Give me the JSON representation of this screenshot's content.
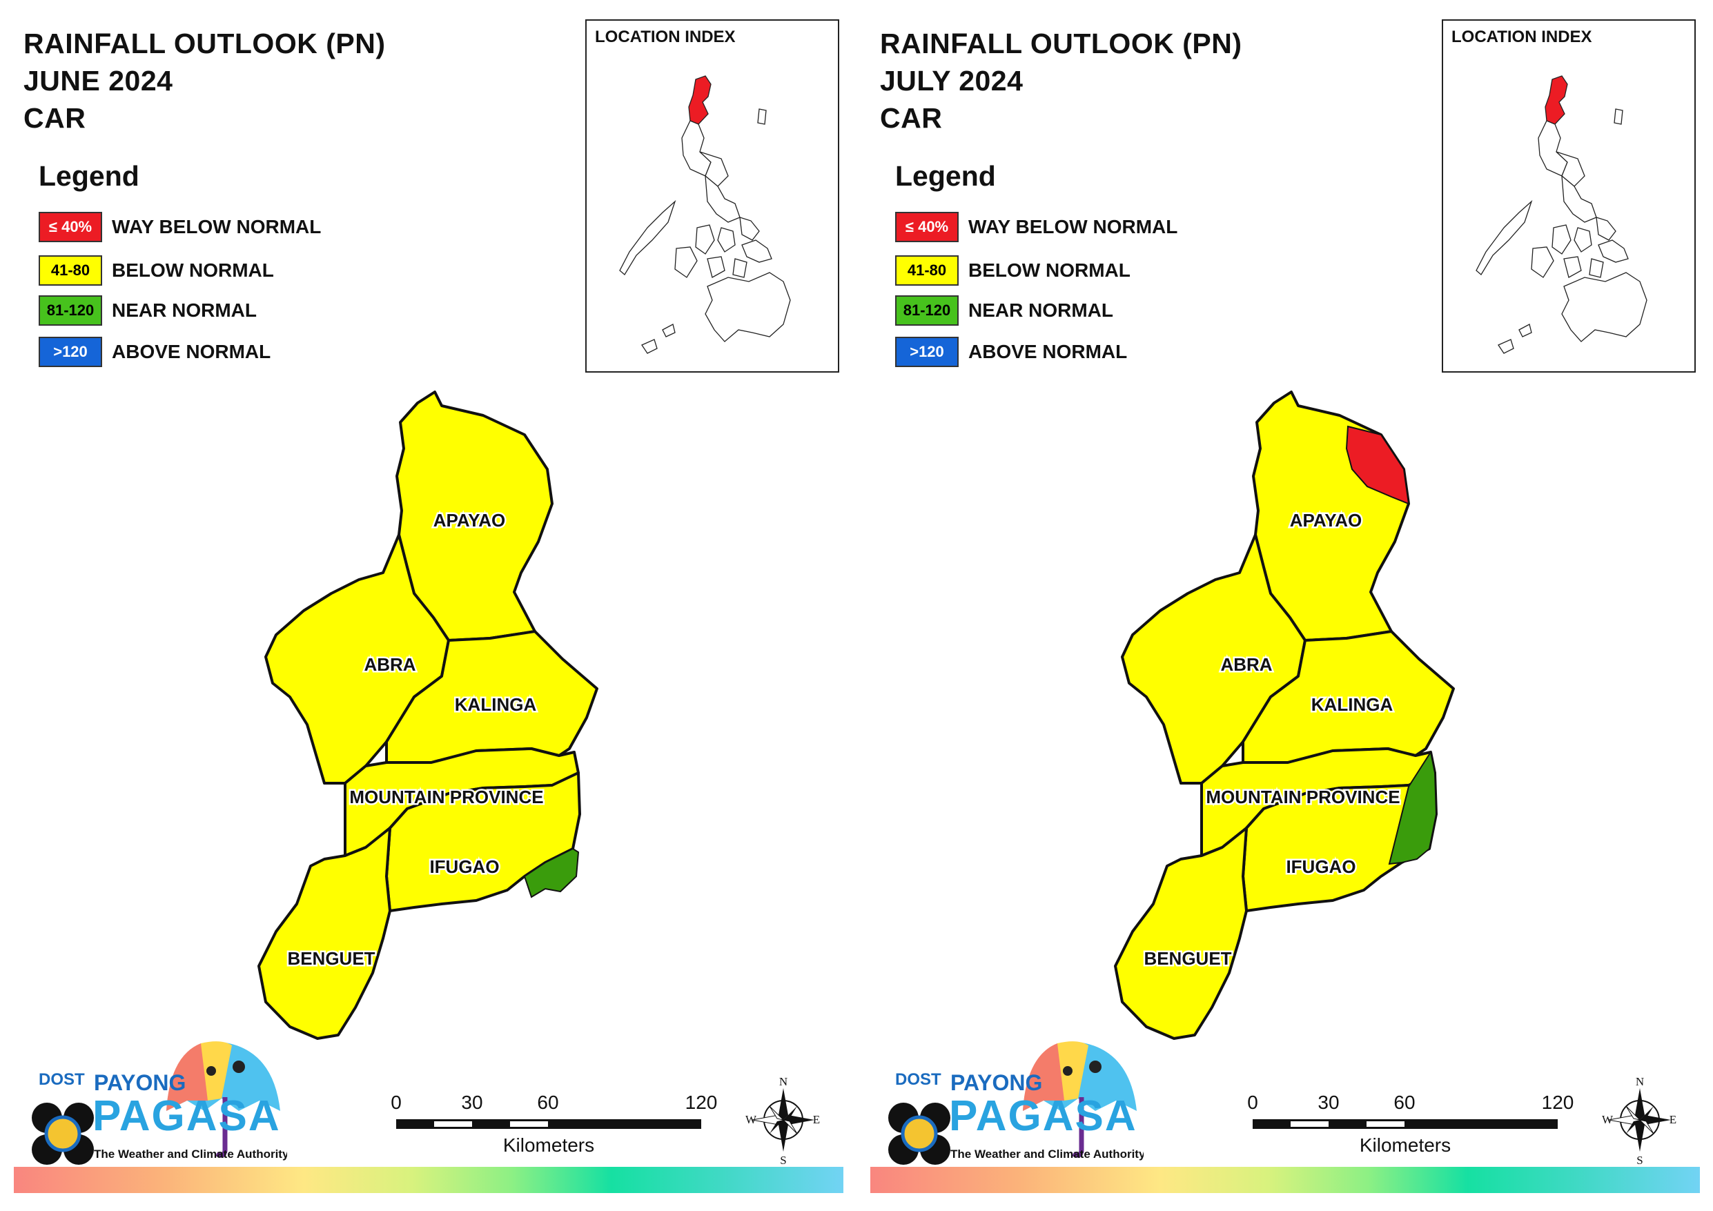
{
  "panels": [
    {
      "title_lines": [
        "RAINFALL OUTLOOK (PN)",
        "JUNE 2024",
        "CAR"
      ],
      "legend_title": "Legend",
      "legend": [
        {
          "range": "≤ 40%",
          "label": "WAY BELOW NORMAL",
          "color": "#ec1c24",
          "text_color": "#ffffff"
        },
        {
          "range": "41-80",
          "label": "BELOW NORMAL",
          "color": "#ffff00",
          "text_color": "#000000"
        },
        {
          "range": "81-120",
          "label": "NEAR NORMAL",
          "color": "#47c21d",
          "text_color": "#000000"
        },
        {
          "range": ">120",
          "label": "ABOVE NORMAL",
          "color": "#1565d8",
          "text_color": "#ffffff"
        }
      ],
      "inset_title": "LOCATION INDEX",
      "provinces": [
        "APAYAO",
        "ABRA",
        "KALINGA",
        "MOUNTAIN PROVINCE",
        "IFUGAO",
        "BENGUET"
      ],
      "province_categories": {
        "APAYAO": "BELOW NORMAL",
        "ABRA": "BELOW NORMAL",
        "KALINGA": "BELOW NORMAL",
        "MOUNTAIN PROVINCE": "BELOW NORMAL",
        "IFUGAO": "BELOW NORMAL with NEAR NORMAL in the southeast",
        "BENGUET": "BELOW NORMAL"
      },
      "scale_ticks": [
        "0",
        "30",
        "60",
        "120"
      ],
      "scale_unit": "Kilometers",
      "compass": {
        "n": "N",
        "e": "E",
        "s": "S",
        "w": "W"
      },
      "logo": {
        "dost": "DOST",
        "payong": "PAYONG",
        "pagasa": "PAGASA",
        "tagline": "The Weather and Climate Authority"
      }
    },
    {
      "title_lines": [
        "RAINFALL OUTLOOK (PN)",
        "JULY 2024",
        "CAR"
      ],
      "legend_title": "Legend",
      "legend": [
        {
          "range": "≤ 40%",
          "label": "WAY BELOW NORMAL",
          "color": "#ec1c24",
          "text_color": "#ffffff"
        },
        {
          "range": "41-80",
          "label": "BELOW NORMAL",
          "color": "#ffff00",
          "text_color": "#000000"
        },
        {
          "range": "81-120",
          "label": "NEAR NORMAL",
          "color": "#47c21d",
          "text_color": "#000000"
        },
        {
          "range": ">120",
          "label": "ABOVE NORMAL",
          "color": "#1565d8",
          "text_color": "#ffffff"
        }
      ],
      "inset_title": "LOCATION INDEX",
      "provinces": [
        "APAYAO",
        "ABRA",
        "KALINGA",
        "MOUNTAIN PROVINCE",
        "IFUGAO",
        "BENGUET"
      ],
      "province_categories": {
        "APAYAO": "BELOW NORMAL with WAY BELOW NORMAL in the northeast",
        "ABRA": "BELOW NORMAL",
        "KALINGA": "BELOW NORMAL",
        "MOUNTAIN PROVINCE": "BELOW NORMAL with NEAR NORMAL in the east",
        "IFUGAO": "BELOW NORMAL with NEAR NORMAL in the east",
        "BENGUET": "BELOW NORMAL"
      },
      "scale_ticks": [
        "0",
        "30",
        "60",
        "120"
      ],
      "scale_unit": "Kilometers",
      "compass": {
        "n": "N",
        "e": "E",
        "s": "S",
        "w": "W"
      },
      "logo": {
        "dost": "DOST",
        "payong": "PAYONG",
        "pagasa": "PAGASA",
        "tagline": "The Weather and Climate Authority"
      }
    }
  ],
  "colors": {
    "way_below": "#ec1c24",
    "below": "#ffff00",
    "near": "#3a9c0c",
    "above": "#1565d8",
    "border": "#111111"
  }
}
